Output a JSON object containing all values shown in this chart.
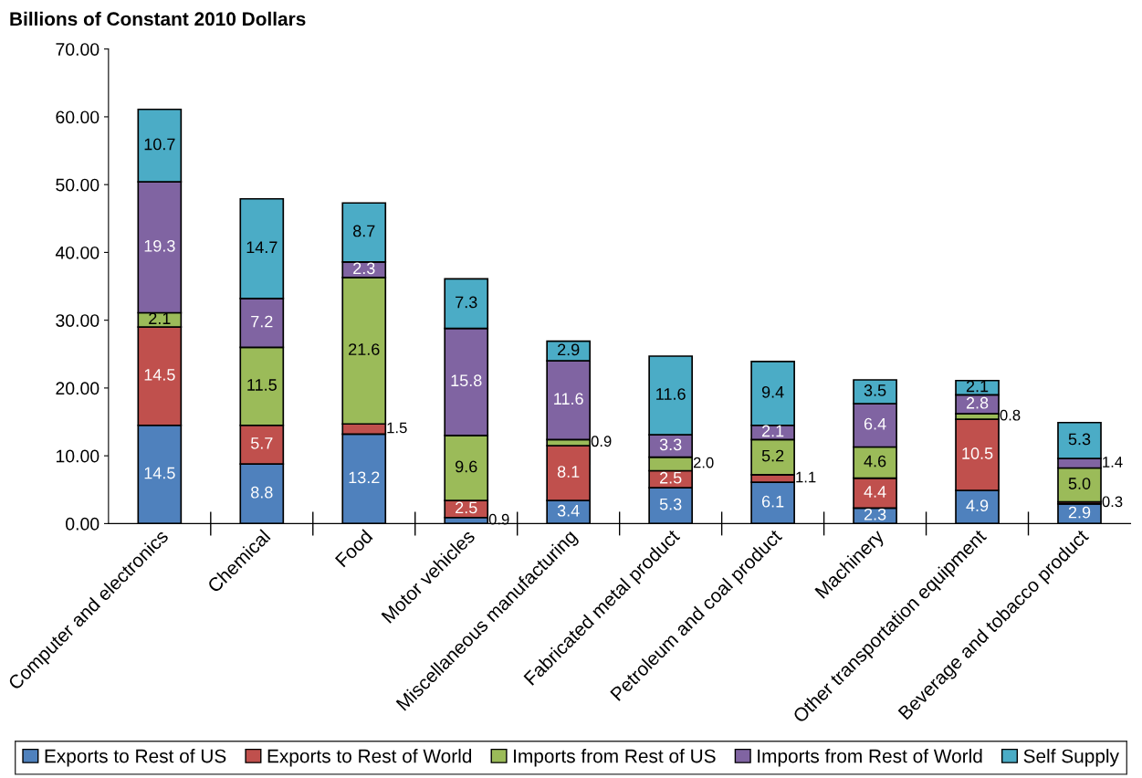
{
  "chart_data": {
    "type": "bar",
    "stacked": true,
    "ylabel": "Billions of Constant 2010 Dollars",
    "categories": [
      "Computer and electronics",
      "Chemical",
      "Food",
      "Motor vehicles",
      "Miscellaneous manufacturing",
      "Fabricated metal product",
      "Petroleum and coal product",
      "Machinery",
      "Other transportation equipment",
      "Beverage and tobacco product"
    ],
    "series": [
      {
        "name": "Exports to Rest of US",
        "color": "#4f81bd",
        "values": [
          14.5,
          8.8,
          13.2,
          0.9,
          3.4,
          5.3,
          6.1,
          2.3,
          4.9,
          2.9
        ],
        "value_labels": [
          "14.5",
          "8.8",
          "13.2",
          "0.9",
          "3.4",
          "5.3",
          "6.1",
          "2.3",
          "4.9",
          "2.9"
        ]
      },
      {
        "name": "Exports to Rest of World",
        "color": "#c0504d",
        "values": [
          14.5,
          5.7,
          1.5,
          2.5,
          8.1,
          2.5,
          1.1,
          4.4,
          10.5,
          0.3
        ],
        "value_labels": [
          "14.5",
          "5.7",
          "1.5",
          "2.5",
          "8.1",
          "2.5",
          "1.1",
          "4.4",
          "10.5",
          "0.3"
        ]
      },
      {
        "name": "Imports from Rest of US",
        "color": "#9bbb59",
        "values": [
          2.1,
          11.5,
          21.6,
          9.6,
          0.9,
          2.0,
          5.2,
          4.6,
          0.8,
          5.0
        ],
        "value_labels": [
          "2.1",
          "11.5",
          "21.6",
          "9.6",
          "0.9",
          "2.0",
          "5.2",
          "4.6",
          "0.8",
          "5.0"
        ]
      },
      {
        "name": "Imports from Rest of World",
        "color": "#8064a2",
        "values": [
          19.3,
          7.2,
          2.3,
          15.8,
          11.6,
          3.3,
          2.1,
          6.4,
          2.8,
          1.4
        ],
        "value_labels": [
          "19.3",
          "7.2",
          "2.3",
          "15.8",
          "11.6",
          "3.3",
          "2.1",
          "6.4",
          "2.8",
          "1.4"
        ]
      },
      {
        "name": "Self Supply",
        "color": "#4bacc6",
        "values": [
          10.7,
          14.7,
          8.7,
          7.3,
          2.9,
          11.6,
          9.4,
          3.5,
          2.1,
          5.3
        ],
        "value_labels": [
          "10.7",
          "14.7",
          "8.7",
          "7.3",
          "2.9",
          "11.6",
          "9.4",
          "3.5",
          "2.1",
          "5.3"
        ]
      }
    ],
    "ylim": [
      0,
      70
    ],
    "yticks": [
      {
        "value": 0,
        "label": "0.00"
      },
      {
        "value": 10,
        "label": "10.00"
      },
      {
        "value": 20,
        "label": "20.00"
      },
      {
        "value": 30,
        "label": "30.00"
      },
      {
        "value": 40,
        "label": "40.00"
      },
      {
        "value": 50,
        "label": "50.00"
      },
      {
        "value": 60,
        "label": "60.00"
      },
      {
        "value": 70,
        "label": "70.00"
      }
    ],
    "legend": "bottom"
  }
}
